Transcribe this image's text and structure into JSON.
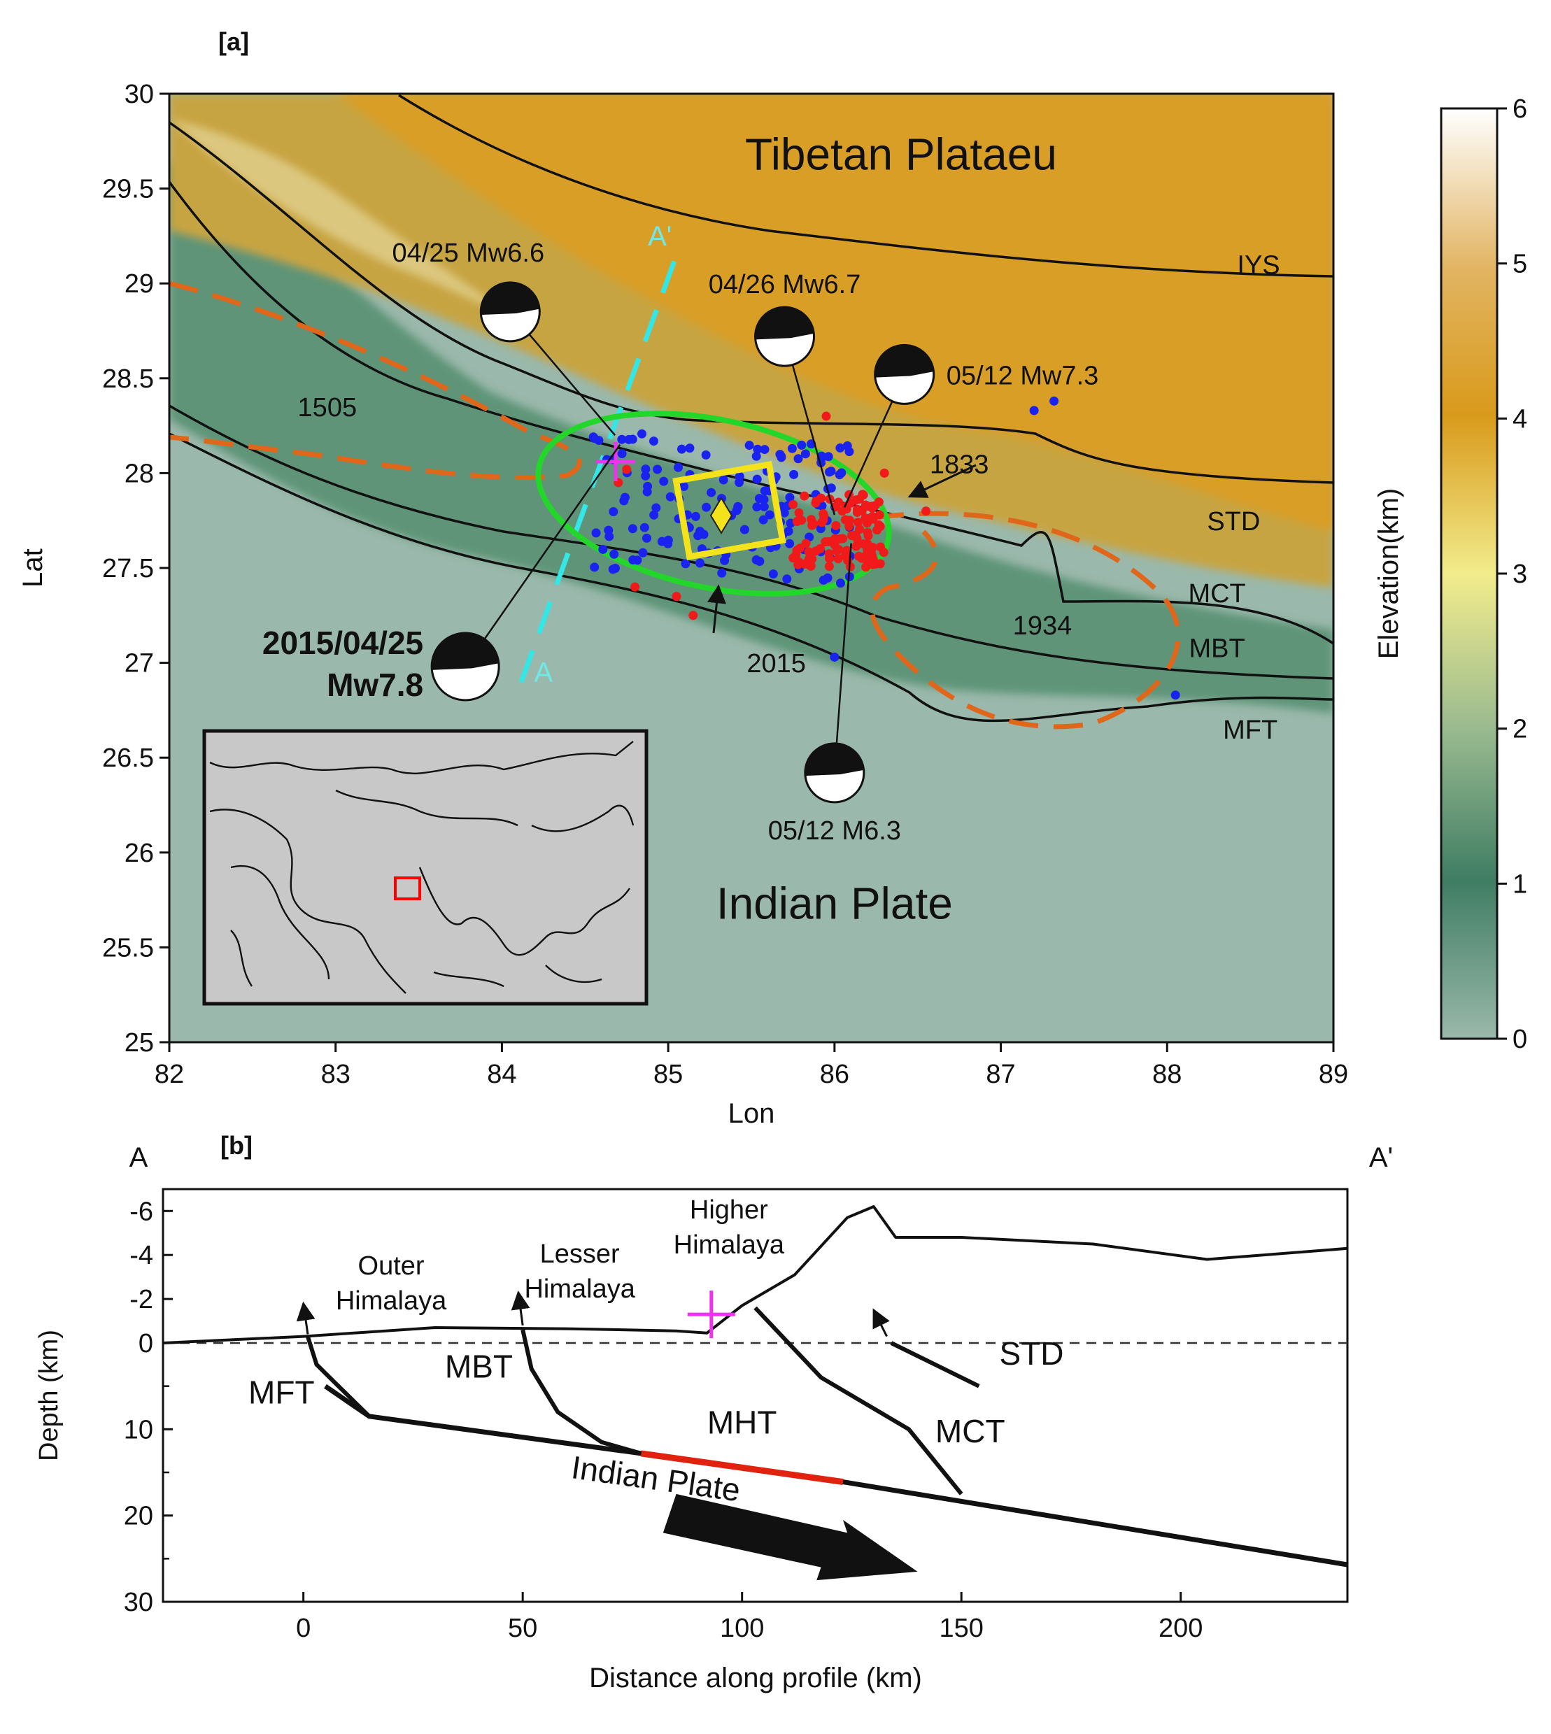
{
  "panel_a": {
    "label": "[a]",
    "xlabel": "Lon",
    "ylabel": "Lat",
    "lon_range": [
      82,
      89
    ],
    "lat_range": [
      25,
      30
    ],
    "lon_ticks": [
      "82",
      "83",
      "84",
      "85",
      "86",
      "87",
      "88",
      "89"
    ],
    "lat_ticks": [
      "30",
      "29.5",
      "29",
      "28.5",
      "28",
      "27.5",
      "27",
      "26.5",
      "26",
      "25.5",
      "25"
    ],
    "region_labels": [
      {
        "text": "Tibetan Plataeu",
        "lon": 86.4,
        "lat": 29.6
      },
      {
        "text": "Indian Plate",
        "lon": 86.0,
        "lat": 25.65
      }
    ],
    "fault_labels": [
      {
        "text": "IYS",
        "lon": 88.55,
        "lat": 29.05
      },
      {
        "text": "STD",
        "lon": 88.4,
        "lat": 27.7
      },
      {
        "text": "MCT",
        "lon": 88.3,
        "lat": 27.32
      },
      {
        "text": "MBT",
        "lon": 88.3,
        "lat": 27.03
      },
      {
        "text": "MFT",
        "lon": 88.5,
        "lat": 26.6
      }
    ],
    "rupture_labels": [
      {
        "text": "1505",
        "lon": 82.95,
        "lat": 28.3
      },
      {
        "text": "1833",
        "lon": 86.75,
        "lat": 28.0
      },
      {
        "text": "1934",
        "lon": 87.25,
        "lat": 27.15
      },
      {
        "text": "2015",
        "lon": 85.65,
        "lat": 26.95
      },
      {
        "text": "A",
        "lon": 84.25,
        "lat": 26.9
      },
      {
        "text": "A'",
        "lon": 84.95,
        "lat": 29.2
      }
    ],
    "events": [
      {
        "label": "04/25 Mw6.6",
        "lon": 84.05,
        "lat": 28.85,
        "epi": [
          84.68,
          28.2
        ]
      },
      {
        "label": "04/26 Mw6.7",
        "lon": 85.7,
        "lat": 28.72,
        "epi": [
          86.0,
          27.78
        ]
      },
      {
        "label": "05/12 Mw7.3",
        "lon": 86.42,
        "lat": 28.52,
        "epi": [
          86.06,
          27.82
        ]
      },
      {
        "label": "05/12 M6.3",
        "lon": 86.0,
        "lat": 26.42,
        "epi": [
          86.1,
          27.63
        ]
      }
    ],
    "mainshock": {
      "label_date": "2015/04/25",
      "label_mag": "Mw7.8",
      "lon": 83.78,
      "lat": 26.98,
      "epi": [
        84.71,
        28.15
      ]
    },
    "colorbar": {
      "label": "Elevation(km)",
      "min": 0,
      "max": 6,
      "ticks": [
        "6",
        "5",
        "4",
        "3",
        "2",
        "1",
        "0"
      ]
    },
    "colors": {
      "lowland": "#9ab8ab",
      "foothills": "#5f9478",
      "mountains": "#c7a443",
      "plateau": "#d99e27",
      "fault_line": "#111111",
      "rupture_dash": "#e0661a",
      "aftershock_ellipse": "#23d62a",
      "section_line": "#35e6e6",
      "slip_box": "#f4e21a",
      "epicenter_cross": "#ee33ee",
      "blue_events": "#1a22f0",
      "red_events": "#f01a1a",
      "inset_box": "#ff0000"
    }
  },
  "panel_b": {
    "label": "[b]",
    "end_left": "A",
    "end_right": "A'",
    "xlabel": "Distance along profile (km)",
    "ylabel": "Depth (km)",
    "x_range": [
      -32,
      238
    ],
    "y_range": [
      -6.8,
      30
    ],
    "x_ticks": [
      "0",
      "50",
      "100",
      "150",
      "200"
    ],
    "y_ticks": [
      "-6",
      "-4",
      "-2",
      "0",
      "10",
      "20",
      "30"
    ],
    "zone_labels": [
      {
        "line1": "Outer",
        "line2": "Himalaya",
        "x": 20
      },
      {
        "line1": "Lesser",
        "line2": "Himalaya",
        "x": 63
      },
      {
        "line1": "Higher",
        "line2": "Himalaya",
        "x": 97
      }
    ],
    "fault_labels": [
      {
        "text": "MFT",
        "x": -5,
        "depth": 7
      },
      {
        "text": "MBT",
        "x": 40,
        "depth": 4
      },
      {
        "text": "MHT",
        "x": 100,
        "depth": 10.5
      },
      {
        "text": "MCT",
        "x": 152,
        "depth": 11.5
      },
      {
        "text": "STD",
        "x": 166,
        "depth": 2.5
      },
      {
        "text": "Indian Plate",
        "x": 80,
        "depth": 17
      }
    ],
    "topography": [
      [
        -32,
        0.0
      ],
      [
        0,
        -0.3
      ],
      [
        30,
        -0.7
      ],
      [
        60,
        -0.65
      ],
      [
        85,
        -0.55
      ],
      [
        92,
        -0.45
      ],
      [
        100,
        -1.7
      ],
      [
        112,
        -3.1
      ],
      [
        124,
        -5.7
      ],
      [
        130,
        -6.2
      ],
      [
        135,
        -4.8
      ],
      [
        150,
        -4.8
      ],
      [
        180,
        -4.5
      ],
      [
        206,
        -3.8
      ],
      [
        238,
        -4.3
      ]
    ],
    "main_thrust": [
      [
        5,
        5
      ],
      [
        15,
        8.5
      ],
      [
        77,
        12.8
      ],
      [
        123,
        16.1
      ],
      [
        238,
        25.7
      ]
    ],
    "rupture_segment": [
      [
        77,
        12.8
      ],
      [
        123,
        16.1
      ]
    ],
    "mainshock_depth": {
      "x": 93,
      "depth": -1.3
    },
    "colors": {
      "rupture": "#e0220e",
      "cross": "#ee33ee",
      "line": "#000000"
    }
  }
}
